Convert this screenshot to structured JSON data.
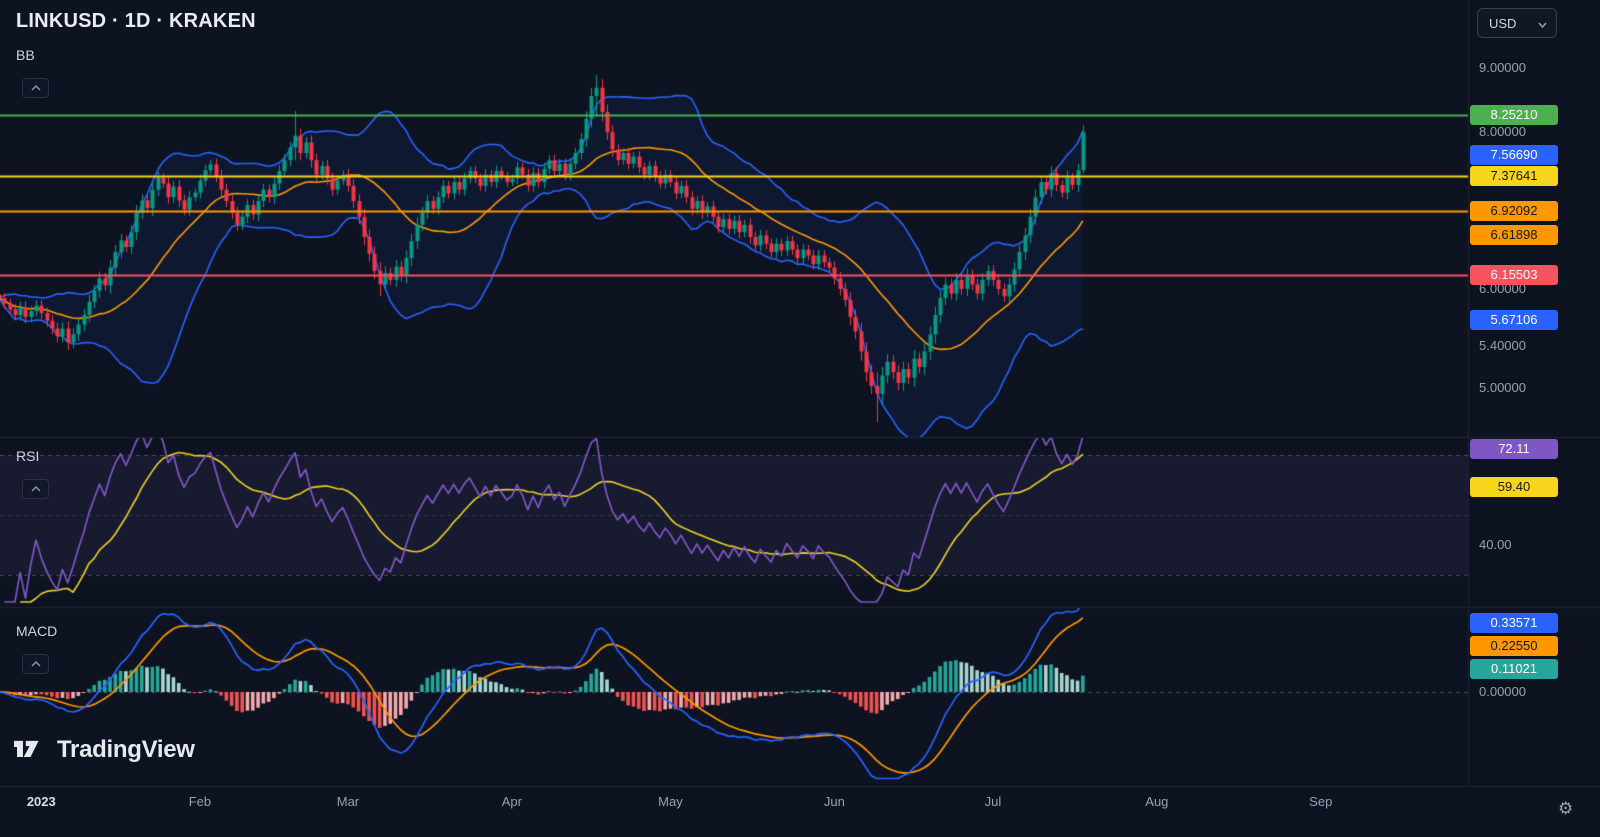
{
  "header": {
    "symbol_title": "LINKUSD · 1D · KRAKEN",
    "currency": "USD"
  },
  "branding": {
    "wordmark": "TradingView"
  },
  "panes": {
    "main": {
      "indicator_label": "BB",
      "price_labels": [
        {
          "text": "9.00000",
          "value": 9.0
        },
        {
          "text": "8.00000",
          "value": 8.0
        },
        {
          "text": "6.00000",
          "value": 6.0
        },
        {
          "text": "5.40000",
          "value": 5.4
        },
        {
          "text": "5.00000",
          "value": 5.0
        }
      ],
      "tags": [
        {
          "text": "8.25210",
          "value": 8.2521,
          "bg": "#4caf50",
          "fg": "#ffffff",
          "line": true,
          "line_color": "#4caf50"
        },
        {
          "text": "7.56690",
          "value": 7.5669,
          "bg": "#2962ff",
          "fg": "#ffffff",
          "line": false
        },
        {
          "text": "7.37641",
          "value": 7.37641,
          "bg": "#f7d51d",
          "fg": "#11151f",
          "line": true,
          "line_color": "#f7d51d"
        },
        {
          "text": "6.92092",
          "value": 6.92092,
          "bg": "#ff9800",
          "fg": "#11151f",
          "line": true,
          "line_color": "#ff9800"
        },
        {
          "text": "6.61898",
          "value": 6.61898,
          "bg": "#ff9800",
          "fg": "#11151f",
          "line": false
        },
        {
          "text": "6.15503",
          "value": 6.15503,
          "bg": "#f7525f",
          "fg": "#ffffff",
          "line": true,
          "line_color": "#f7525f"
        },
        {
          "text": "5.67106",
          "value": 5.67106,
          "bg": "#2962ff",
          "fg": "#ffffff",
          "line": false
        }
      ]
    },
    "rsi": {
      "indicator_label": "RSI",
      "tags": [
        {
          "text": "72.11",
          "value": 72.11,
          "bg": "#7e57c2",
          "fg": "#ffffff"
        },
        {
          "text": "59.40",
          "value": 59.4,
          "bg": "#f7d51d",
          "fg": "#11151f"
        }
      ],
      "axis_labels": [
        {
          "text": "40.00",
          "value": 40
        }
      ],
      "zone": {
        "upper": 70,
        "middle": 50,
        "lower": 30
      }
    },
    "macd": {
      "indicator_label": "MACD",
      "tags": [
        {
          "text": "0.33571",
          "value": 0.33571,
          "bg": "#2962ff",
          "fg": "#ffffff"
        },
        {
          "text": "0.22550",
          "value": 0.2255,
          "bg": "#ff9800",
          "fg": "#11151f"
        },
        {
          "text": "0.11021",
          "value": 0.11021,
          "bg": "#26a69a",
          "fg": "#ffffff"
        }
      ],
      "axis_labels": [
        {
          "text": "0.00000",
          "value": 0
        }
      ]
    }
  },
  "time_axis": {
    "labels": [
      {
        "text": "2023",
        "day": 8,
        "major": true
      },
      {
        "text": "Feb",
        "day": 38
      },
      {
        "text": "Mar",
        "day": 66
      },
      {
        "text": "Apr",
        "day": 97
      },
      {
        "text": "May",
        "day": 127
      },
      {
        "text": "Jun",
        "day": 158
      },
      {
        "text": "Jul",
        "day": 188
      },
      {
        "text": "Aug",
        "day": 219
      },
      {
        "text": "Sep",
        "day": 250
      }
    ]
  },
  "chart_data": {
    "type": "candlestick",
    "symbol": "LINKUSD",
    "interval": "1D",
    "exchange": "KRAKEN",
    "price_scale": "logarithmic",
    "visible_price_range": [
      4.7,
      9.3
    ],
    "visible_time_range": [
      "Dec 2022",
      "Sep 2023"
    ],
    "closes": [
      5.9,
      5.84,
      5.78,
      5.72,
      5.8,
      5.7,
      5.76,
      5.82,
      5.74,
      5.66,
      5.58,
      5.5,
      5.58,
      5.44,
      5.52,
      5.62,
      5.72,
      5.86,
      5.98,
      6.12,
      6.04,
      6.24,
      6.42,
      6.56,
      6.48,
      6.66,
      6.9,
      7.06,
      6.96,
      7.2,
      7.36,
      7.28,
      7.1,
      7.24,
      7.06,
      6.94,
      7.1,
      7.16,
      7.32,
      7.46,
      7.54,
      7.38,
      7.2,
      7.05,
      6.9,
      6.75,
      6.85,
      7.0,
      6.88,
      7.05,
      7.2,
      7.1,
      7.28,
      7.45,
      7.6,
      7.78,
      7.95,
      7.7,
      7.85,
      7.6,
      7.4,
      7.52,
      7.35,
      7.2,
      7.32,
      7.4,
      7.25,
      7.05,
      6.85,
      6.6,
      6.4,
      6.2,
      6.05,
      6.18,
      6.1,
      6.25,
      6.15,
      6.35,
      6.55,
      6.75,
      6.9,
      7.05,
      6.95,
      7.1,
      7.25,
      7.15,
      7.3,
      7.2,
      7.35,
      7.45,
      7.35,
      7.25,
      7.4,
      7.3,
      7.45,
      7.38,
      7.3,
      7.35,
      7.5,
      7.4,
      7.25,
      7.42,
      7.3,
      7.48,
      7.6,
      7.45,
      7.55,
      7.4,
      7.55,
      7.7,
      7.9,
      8.2,
      8.55,
      8.68,
      8.3,
      8.0,
      7.75,
      7.6,
      7.7,
      7.55,
      7.65,
      7.5,
      7.4,
      7.52,
      7.38,
      7.28,
      7.4,
      7.3,
      7.15,
      7.25,
      7.1,
      6.95,
      7.05,
      6.9,
      6.98,
      6.85,
      6.72,
      6.82,
      6.7,
      6.8,
      6.66,
      6.75,
      6.6,
      6.5,
      6.62,
      6.52,
      6.42,
      6.52,
      6.44,
      6.55,
      6.45,
      6.35,
      6.45,
      6.38,
      6.28,
      6.38,
      6.3,
      6.24,
      6.12,
      6.0,
      5.88,
      5.7,
      5.55,
      5.35,
      5.15,
      5.02,
      4.95,
      5.12,
      5.25,
      5.15,
      5.05,
      5.18,
      5.1,
      5.28,
      5.2,
      5.35,
      5.52,
      5.72,
      5.9,
      6.05,
      5.95,
      6.1,
      6.0,
      6.15,
      6.05,
      5.95,
      6.1,
      6.2,
      6.1,
      6.0,
      5.92,
      6.05,
      6.22,
      6.42,
      6.62,
      6.85,
      7.1,
      7.3,
      7.2,
      7.42,
      7.26,
      7.16,
      7.36,
      7.26,
      7.46,
      8.0
    ],
    "wick_overrides": {
      "56": [
        8.32,
        7.6
      ],
      "72": [
        6.3,
        5.92
      ],
      "113": [
        8.88,
        8.25
      ],
      "166": [
        5.15,
        4.7
      ],
      "205": [
        8.1,
        7.42
      ]
    },
    "horizontal_lines": [
      8.2521,
      7.37641,
      6.92092,
      6.15503
    ],
    "bb_last": {
      "upper": 7.5669,
      "basis": 6.61898,
      "lower": 5.67106
    },
    "rsi_last": {
      "rsi": 72.11,
      "ma": 59.4
    },
    "macd_last": {
      "macd": 0.33571,
      "signal": 0.2255,
      "histogram": 0.11021
    }
  },
  "colors": {
    "bg": "#0d1320",
    "up": "#089981",
    "down": "#f23645",
    "bb": "#2962ff",
    "bb_fill": "rgba(41,98,255,0.08)",
    "basis": "#ff9800",
    "rsi": "#7e57c2",
    "rsi_ma": "#edd226",
    "rsi_zone": "rgba(126,87,194,0.10)",
    "macd": "#2962ff",
    "signal": "#ff9800",
    "hist_grow_above": "#26a69a",
    "hist_fall_above": "#a8d6d0",
    "hist_grow_below": "#f5a9ad",
    "hist_fall_below": "#ef5350",
    "dash": "rgba(134,141,155,0.45)",
    "dash_faint": "rgba(134,141,155,0.25)",
    "divider": "#1d2434"
  }
}
